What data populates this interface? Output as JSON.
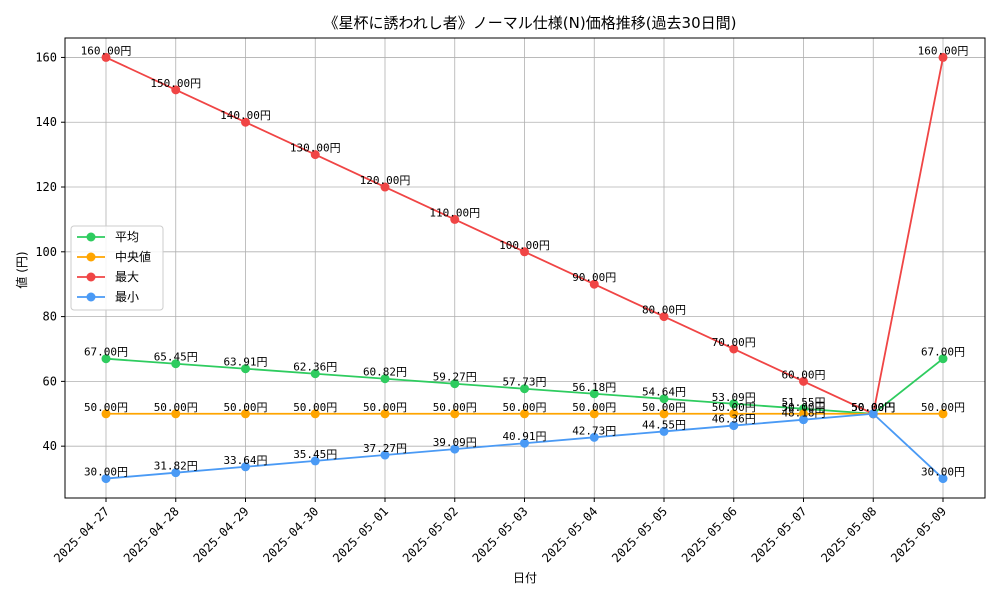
{
  "chart_data": {
    "type": "line",
    "title": "《星杯に誘われし者》ノーマル仕様(N)価格推移(過去30日間)",
    "xlabel": "日付",
    "ylabel": "値 (円)",
    "ylim": [
      24,
      166
    ],
    "yticks": [
      40,
      60,
      80,
      100,
      120,
      140,
      160
    ],
    "grid": true,
    "legend_position": "center-left",
    "categories": [
      "2025-04-27",
      "2025-04-28",
      "2025-04-29",
      "2025-04-30",
      "2025-05-01",
      "2025-05-02",
      "2025-05-03",
      "2025-05-04",
      "2025-05-05",
      "2025-05-06",
      "2025-05-07",
      "2025-05-08",
      "2025-05-09"
    ],
    "series": [
      {
        "name": "平均",
        "color": "#2ecc5f",
        "values": [
          67.0,
          65.45,
          63.91,
          62.36,
          60.82,
          59.27,
          57.73,
          56.18,
          54.64,
          53.09,
          51.55,
          50.0,
          67.0
        ],
        "labels": [
          "67.00円",
          "65.45円",
          "63.91円",
          "62.36円",
          "60.82円",
          "59.27円",
          "57.73円",
          "56.18円",
          "54.64円",
          "53.09円",
          "51.55円",
          "50.00円",
          "67.00円"
        ]
      },
      {
        "name": "中央値",
        "color": "#ffa500",
        "values": [
          50,
          50,
          50,
          50,
          50,
          50,
          50,
          50,
          50,
          50,
          50,
          50,
          50
        ],
        "labels": [
          "50.00円",
          "50.00円",
          "50.00円",
          "50.00円",
          "50.00円",
          "50.00円",
          "50.00円",
          "50.00円",
          "50.00円",
          "50.00円",
          "50.00円",
          "50.00円",
          "50.00円"
        ]
      },
      {
        "name": "最大",
        "color": "#f04545",
        "values": [
          160,
          150,
          140,
          130,
          120,
          110,
          100,
          90,
          80,
          70,
          60,
          50,
          160
        ],
        "labels": [
          "160.00円",
          "150.00円",
          "140.00円",
          "130.00円",
          "120.00円",
          "110.00円",
          "100.00円",
          "90.00円",
          "80.00円",
          "70.00円",
          "60.00円",
          "50.00円",
          "160.00円"
        ]
      },
      {
        "name": "最小",
        "color": "#4a9af5",
        "values": [
          30.0,
          31.82,
          33.64,
          35.45,
          37.27,
          39.09,
          40.91,
          42.73,
          44.55,
          46.36,
          48.18,
          50.0,
          30.0
        ],
        "labels": [
          "30.00円",
          "31.82円",
          "33.64円",
          "35.45円",
          "37.27円",
          "39.09円",
          "40.91円",
          "42.73円",
          "44.55円",
          "46.36円",
          "48.18円",
          "50.00円",
          "30.00円"
        ]
      }
    ]
  }
}
